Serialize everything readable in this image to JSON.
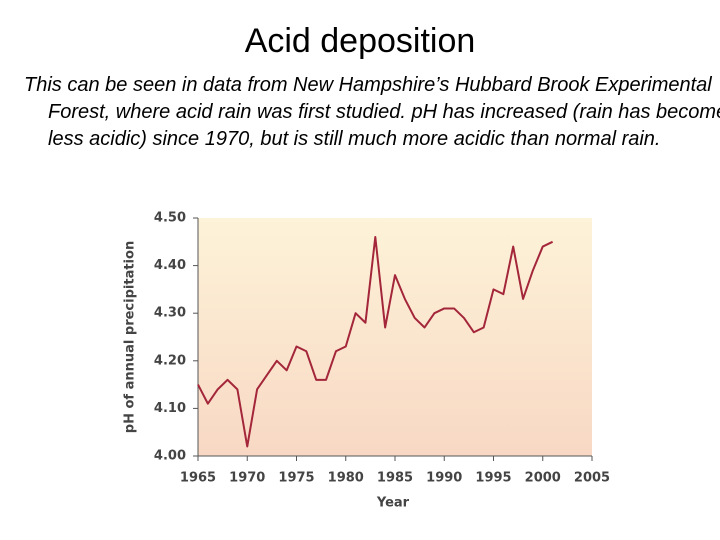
{
  "heading": "Acid deposition",
  "body": "This can be seen in data from New Hampshire’s Hubbard Brook Experimental Forest, where acid rain was first studied.  pH has increased (rain has become less acidic) since 1970, but is still much more acidic than normal rain.",
  "chart_data": {
    "type": "line",
    "x_label": "Year",
    "y_label": "pH of annual precipitation",
    "x": [
      1965,
      1966,
      1967,
      1968,
      1969,
      1970,
      1971,
      1972,
      1973,
      1974,
      1975,
      1976,
      1977,
      1978,
      1979,
      1980,
      1981,
      1982,
      1983,
      1984,
      1985,
      1986,
      1987,
      1988,
      1989,
      1990,
      1991,
      1992,
      1993,
      1994,
      1995,
      1996,
      1997,
      1998,
      1999,
      2000,
      2001
    ],
    "values": [
      4.15,
      4.11,
      4.14,
      4.16,
      4.14,
      4.02,
      4.14,
      4.17,
      4.2,
      4.18,
      4.23,
      4.22,
      4.16,
      4.16,
      4.22,
      4.23,
      4.3,
      4.28,
      4.46,
      4.27,
      4.38,
      4.33,
      4.29,
      4.27,
      4.3,
      4.31,
      4.31,
      4.29,
      4.26,
      4.27,
      4.35,
      4.34,
      4.44,
      4.33,
      4.39,
      4.44,
      4.45
    ],
    "color": "#a3263a",
    "xlim": [
      1965,
      2005
    ],
    "xticks": [
      1965,
      1970,
      1975,
      1980,
      1985,
      1990,
      1995,
      2000,
      2005
    ],
    "ylim": [
      4.0,
      4.5
    ],
    "yticks": [
      {
        "value": 4.0,
        "label": "4.00"
      },
      {
        "value": 4.1,
        "label": "4.10"
      },
      {
        "value": 4.2,
        "label": "4.20"
      },
      {
        "value": 4.3,
        "label": "4.30"
      },
      {
        "value": 4.4,
        "label": "4.40"
      },
      {
        "value": 4.5,
        "label": "4.50"
      }
    ]
  }
}
